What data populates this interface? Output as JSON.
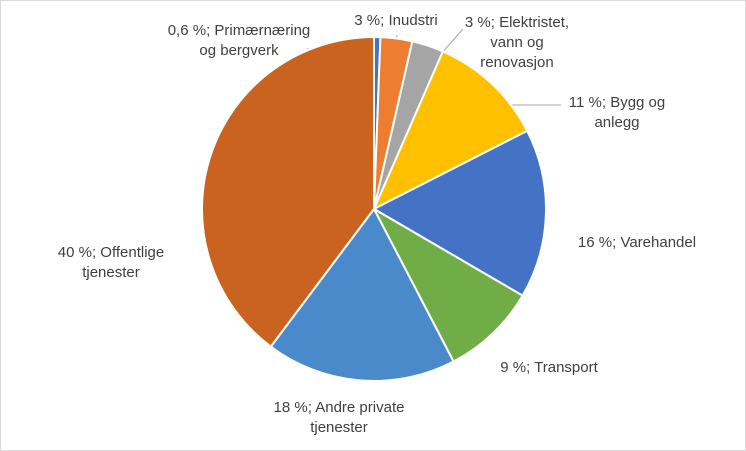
{
  "chart_data": {
    "type": "pie",
    "categories": [
      "Primærnæring og bergverk",
      "Inudstri",
      "Elektristet, vann og renovasjon",
      "Bygg og anlegg",
      "Varehandel",
      "Transport",
      "Andre private tjenester",
      "Offentlige tjenester"
    ],
    "values": [
      0.6,
      3,
      3,
      11,
      16,
      9,
      18,
      40
    ],
    "value_labels": [
      "0,6 %;",
      "3 %;",
      "3 %;",
      "11 %;",
      "16 %;",
      "9 %;",
      "18 %;",
      "40 %;"
    ],
    "colors": [
      "#4472c4",
      "#ed7d31",
      "#a5a5a5",
      "#ffc000",
      "#4472c4",
      "#70ad47",
      "#4a8acb",
      "#c9631f"
    ]
  }
}
